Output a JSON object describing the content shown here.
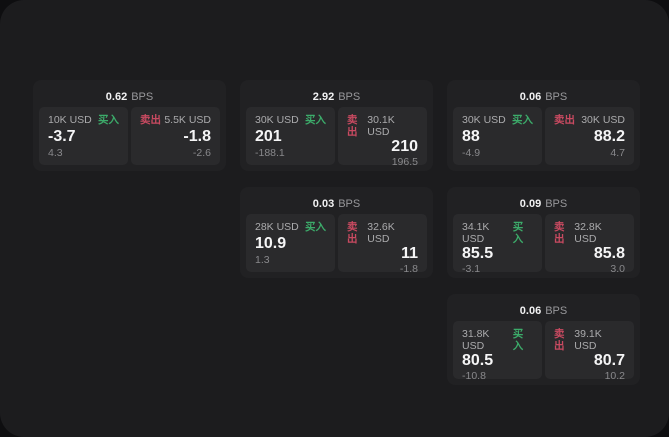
{
  "labels": {
    "bps_unit": "BPS",
    "buy": "买入",
    "sell": "卖出"
  },
  "colors": {
    "buy": "#3cab6a",
    "sell": "#c94a61",
    "panel_background": "#2a2a2c",
    "card_background": "#212123",
    "screen_background": "#1c1c1e"
  },
  "cards": [
    {
      "row": 1,
      "col": 1,
      "bps": "0.62",
      "buy": {
        "amount": "10K USD",
        "value": "-3.7",
        "delta": "4.3"
      },
      "sell": {
        "amount": "5.5K USD",
        "value": "-1.8",
        "delta": "-2.6"
      }
    },
    {
      "row": 1,
      "col": 2,
      "bps": "2.92",
      "buy": {
        "amount": "30K USD",
        "value": "201",
        "delta": "-188.1"
      },
      "sell": {
        "amount": "30.1K USD",
        "value": "210",
        "delta": "196.5"
      }
    },
    {
      "row": 1,
      "col": 3,
      "bps": "0.06",
      "buy": {
        "amount": "30K USD",
        "value": "88",
        "delta": "-4.9"
      },
      "sell": {
        "amount": "30K USD",
        "value": "88.2",
        "delta": "4.7"
      }
    },
    {
      "row": 2,
      "col": 2,
      "bps": "0.03",
      "buy": {
        "amount": "28K USD",
        "value": "10.9",
        "delta": "1.3"
      },
      "sell": {
        "amount": "32.6K USD",
        "value": "11",
        "delta": "-1.8"
      }
    },
    {
      "row": 2,
      "col": 3,
      "bps": "0.09",
      "buy": {
        "amount": "34.1K USD",
        "value": "85.5",
        "delta": "-3.1"
      },
      "sell": {
        "amount": "32.8K USD",
        "value": "85.8",
        "delta": "3.0"
      }
    },
    {
      "row": 3,
      "col": 3,
      "bps": "0.06",
      "buy": {
        "amount": "31.8K USD",
        "value": "80.5",
        "delta": "-10.8"
      },
      "sell": {
        "amount": "39.1K USD",
        "value": "80.7",
        "delta": "10.2"
      }
    }
  ]
}
